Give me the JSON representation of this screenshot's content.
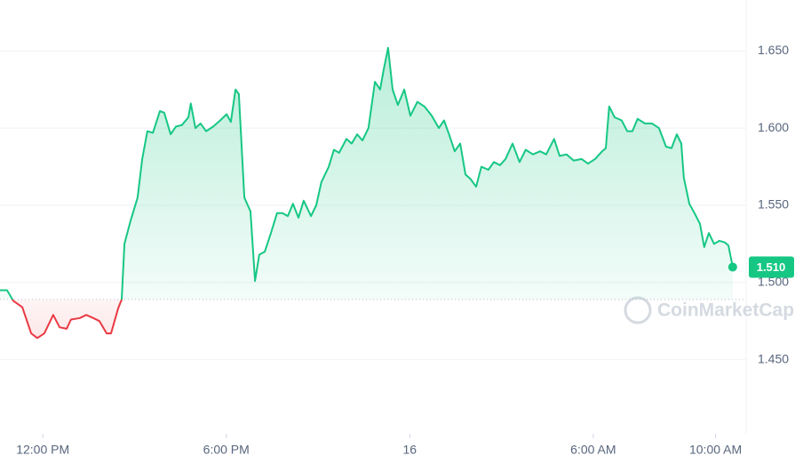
{
  "chart_data": {
    "type": "line",
    "x": [
      -1.4,
      -1.17,
      -0.96,
      -0.67,
      -0.38,
      -0.18,
      0.05,
      0.34,
      0.55,
      0.78,
      0.92,
      1.21,
      1.42,
      1.65,
      1.85,
      2.09,
      2.23,
      2.46,
      2.58,
      2.67,
      2.87,
      3.1,
      3.25,
      3.42,
      3.6,
      3.83,
      3.97,
      4.18,
      4.35,
      4.55,
      4.76,
      4.84,
      4.99,
      5.16,
      5.34,
      5.57,
      5.8,
      6.01,
      6.15,
      6.3,
      6.41,
      6.59,
      6.79,
      6.94,
      7.08,
      7.26,
      7.46,
      7.66,
      7.84,
      8.01,
      8.18,
      8.36,
      8.53,
      8.77,
      8.94,
      9.11,
      9.35,
      9.52,
      9.69,
      9.93,
      10.1,
      10.28,
      10.45,
      10.65,
      10.86,
      11.03,
      11.15,
      11.29,
      11.44,
      11.61,
      11.82,
      12.02,
      12.25,
      12.48,
      12.72,
      12.95,
      13.12,
      13.3,
      13.47,
      13.65,
      13.82,
      13.99,
      14.17,
      14.34,
      14.57,
      14.75,
      14.95,
      15.13,
      15.36,
      15.59,
      15.79,
      16.03,
      16.26,
      16.46,
      16.72,
      16.9,
      17.13,
      17.36,
      17.62,
      17.83,
      18.06,
      18.29,
      18.41,
      18.52,
      18.7,
      18.93,
      19.11,
      19.28,
      19.45,
      19.69,
      19.92,
      20.15,
      20.38,
      20.56,
      20.73,
      20.88,
      20.96,
      21.14,
      21.31,
      21.49,
      21.63,
      21.78,
      21.95,
      22.13,
      22.3,
      22.42,
      22.56
    ],
    "series": [
      {
        "color": "#16c784",
        "color_below": "#ea3943",
        "values": [
          1.495,
          1.495,
          1.488,
          1.484,
          1.467,
          1.464,
          1.467,
          1.479,
          1.471,
          1.47,
          1.476,
          1.477,
          1.479,
          1.477,
          1.475,
          1.467,
          1.467,
          1.483,
          1.489,
          1.525,
          1.54,
          1.555,
          1.58,
          1.598,
          1.597,
          1.611,
          1.61,
          1.596,
          1.601,
          1.602,
          1.607,
          1.616,
          1.6,
          1.603,
          1.598,
          1.601,
          1.605,
          1.609,
          1.604,
          1.625,
          1.622,
          1.555,
          1.546,
          1.501,
          1.518,
          1.52,
          1.532,
          1.545,
          1.545,
          1.543,
          1.551,
          1.542,
          1.553,
          1.543,
          1.55,
          1.565,
          1.575,
          1.586,
          1.584,
          1.593,
          1.59,
          1.596,
          1.592,
          1.6,
          1.63,
          1.625,
          1.638,
          1.652,
          1.625,
          1.615,
          1.625,
          1.608,
          1.617,
          1.614,
          1.608,
          1.6,
          1.605,
          1.595,
          1.585,
          1.59,
          1.57,
          1.567,
          1.562,
          1.575,
          1.573,
          1.578,
          1.576,
          1.58,
          1.59,
          1.578,
          1.586,
          1.583,
          1.585,
          1.583,
          1.593,
          1.582,
          1.583,
          1.579,
          1.58,
          1.577,
          1.58,
          1.585,
          1.587,
          1.614,
          1.607,
          1.605,
          1.598,
          1.598,
          1.606,
          1.603,
          1.603,
          1.6,
          1.588,
          1.587,
          1.596,
          1.59,
          1.568,
          1.551,
          1.545,
          1.538,
          1.523,
          1.532,
          1.525,
          1.527,
          1.526,
          1.524,
          1.51
        ]
      }
    ],
    "baseline": 1.489,
    "price_tag": {
      "value": 1.51,
      "label": "1.510"
    },
    "watermark": "CoinMarketCap",
    "xlim": [
      -1.4,
      23.0
    ],
    "xticks": [
      {
        "value": 0,
        "label": "12:00 PM"
      },
      {
        "value": 6,
        "label": "6:00 PM"
      },
      {
        "value": 12,
        "label": "16"
      },
      {
        "value": 18,
        "label": "6:00 AM"
      },
      {
        "value": 22,
        "label": "10:00 AM"
      }
    ],
    "ylim": [
      1.402,
      1.683
    ],
    "yticks": [
      {
        "value": 1.45,
        "label": "1.450"
      },
      {
        "value": 1.5,
        "label": "1.500"
      },
      {
        "value": 1.55,
        "label": "1.550"
      },
      {
        "value": 1.6,
        "label": "1.600"
      },
      {
        "value": 1.65,
        "label": "1.650"
      }
    ],
    "grid": true
  }
}
